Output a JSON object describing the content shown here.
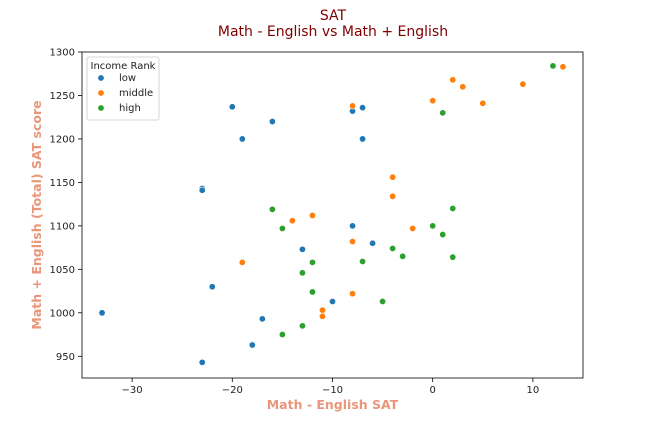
{
  "chart_data": {
    "type": "scatter",
    "title": "SAT",
    "subtitle": "Math - English vs Math + English",
    "xlabel": "Math - English SAT",
    "ylabel": "Math + English (Total) SAT score",
    "xlim": [
      -35,
      15
    ],
    "ylim": [
      925,
      1300
    ],
    "xticks": [
      -30,
      -20,
      -10,
      0,
      10
    ],
    "yticks": [
      950,
      1000,
      1050,
      1100,
      1150,
      1200,
      1250,
      1300
    ],
    "grid": false,
    "legend": {
      "title": "Income Rank",
      "placement": "top-left"
    },
    "series": [
      {
        "name": "low",
        "color": "#1f77b4",
        "points": [
          [
            -33,
            1000
          ],
          [
            -23,
            1143
          ],
          [
            -23,
            1141
          ],
          [
            -23,
            943
          ],
          [
            -22,
            1030
          ],
          [
            -20,
            1237
          ],
          [
            -19,
            1200
          ],
          [
            -18,
            963
          ],
          [
            -17,
            993
          ],
          [
            -16,
            1220
          ],
          [
            -13,
            1073
          ],
          [
            -10,
            1013
          ],
          [
            -8,
            1232
          ],
          [
            -8,
            1100
          ],
          [
            -7,
            1236
          ],
          [
            -7,
            1200
          ],
          [
            -6,
            1080
          ]
        ]
      },
      {
        "name": "middle",
        "color": "#ff7f0e",
        "points": [
          [
            -19,
            1058
          ],
          [
            -14,
            1106
          ],
          [
            -12,
            1112
          ],
          [
            -11,
            1003
          ],
          [
            -11,
            996
          ],
          [
            -8,
            1238
          ],
          [
            -8,
            1082
          ],
          [
            -8,
            1022
          ],
          [
            -4,
            1156
          ],
          [
            -4,
            1134
          ],
          [
            -2,
            1097
          ],
          [
            0,
            1244
          ],
          [
            2,
            1268
          ],
          [
            3,
            1260
          ],
          [
            5,
            1241
          ],
          [
            9,
            1263
          ],
          [
            13,
            1283
          ]
        ]
      },
      {
        "name": "high",
        "color": "#2ca02c",
        "points": [
          [
            -16,
            1119
          ],
          [
            -15,
            1097
          ],
          [
            -15,
            975
          ],
          [
            -13,
            1046
          ],
          [
            -13,
            985
          ],
          [
            -12,
            1058
          ],
          [
            -12,
            1024
          ],
          [
            -7,
            1059
          ],
          [
            -5,
            1013
          ],
          [
            -4,
            1074
          ],
          [
            -3,
            1065
          ],
          [
            0,
            1100
          ],
          [
            1,
            1090
          ],
          [
            1,
            1230
          ],
          [
            2,
            1120
          ],
          [
            2,
            1064
          ],
          [
            12,
            1284
          ]
        ]
      }
    ]
  }
}
